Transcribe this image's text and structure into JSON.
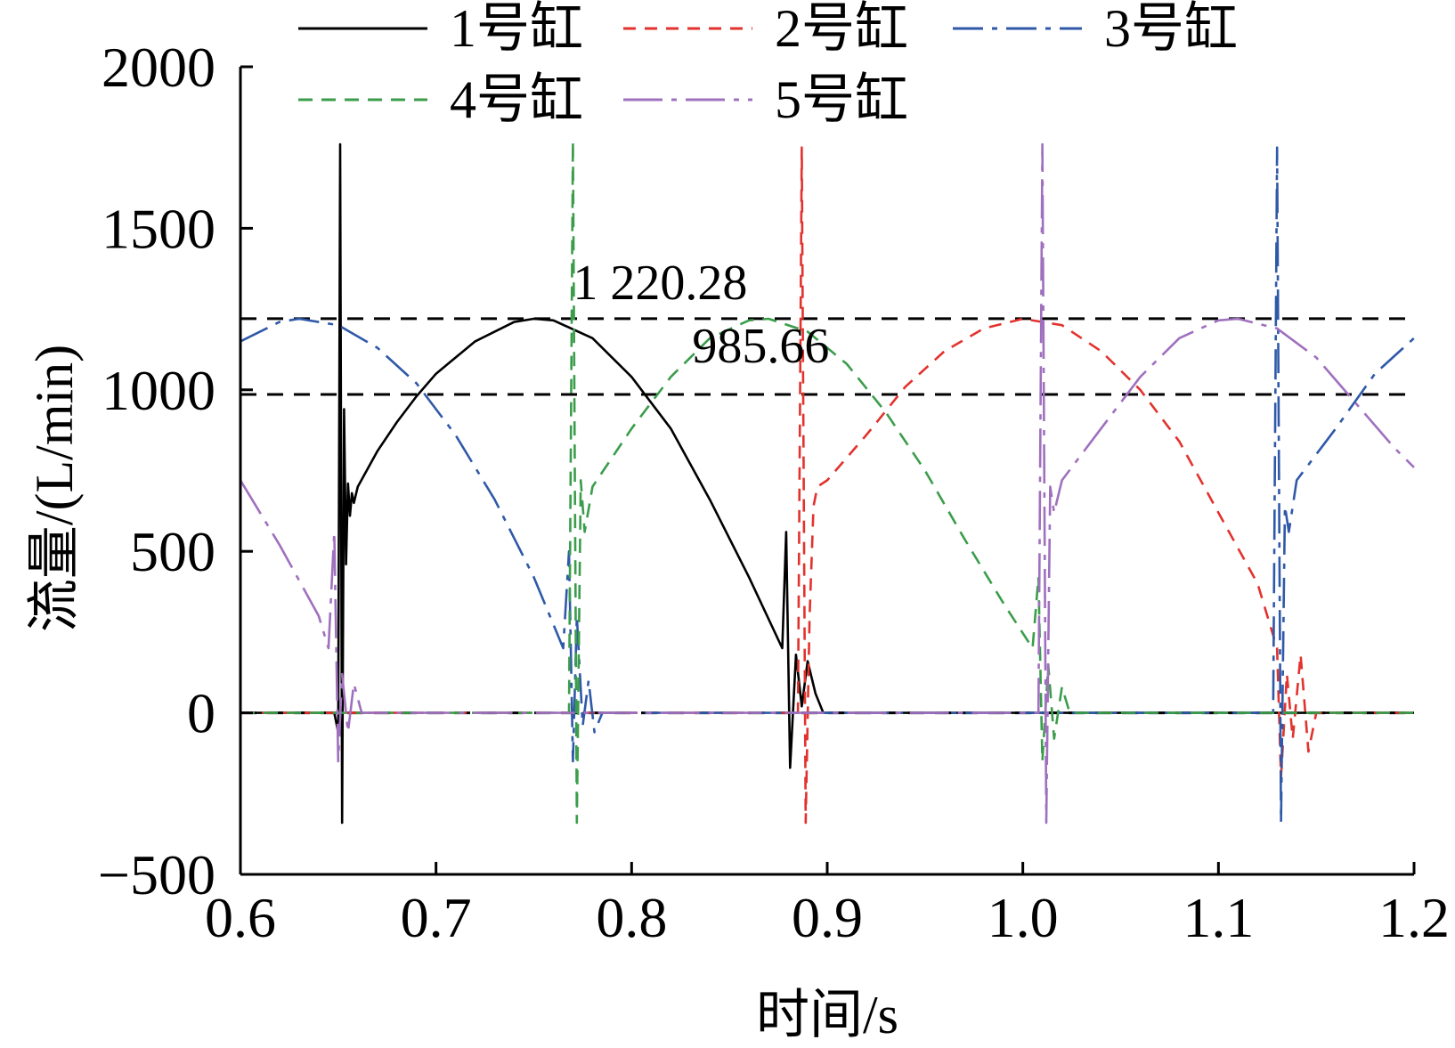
{
  "chart_data": {
    "type": "line",
    "title": "",
    "xlabel": "时间/s",
    "ylabel": "流量/(L/min)",
    "xlim": [
      0.6,
      1.2
    ],
    "ylim": [
      -500,
      2000
    ],
    "x_ticks": [
      "0.6",
      "0.7",
      "0.8",
      "0.9",
      "1.0",
      "1.1",
      "1.2"
    ],
    "y_ticks": [
      "−500",
      "0",
      "500",
      "1000",
      "1500",
      "2000"
    ],
    "grid": false,
    "legend": "top",
    "reference_lines": [
      {
        "y": 1220.28,
        "label": "1 220.28",
        "style": "dashed",
        "color": "#000000"
      },
      {
        "y": 985.66,
        "label": "985.66",
        "style": "dashed",
        "color": "#000000"
      }
    ],
    "series": [
      {
        "name": "1号缸",
        "color": "#000000",
        "dash": "solid",
        "points": [
          [
            0.6,
            0
          ],
          [
            0.648,
            0
          ],
          [
            0.65,
            -60
          ],
          [
            0.651,
            1760
          ],
          [
            0.652,
            -340
          ],
          [
            0.653,
            940
          ],
          [
            0.654,
            460
          ],
          [
            0.655,
            710
          ],
          [
            0.656,
            610
          ],
          [
            0.657,
            680
          ],
          [
            0.658,
            650
          ],
          [
            0.66,
            700
          ],
          [
            0.67,
            810
          ],
          [
            0.68,
            900
          ],
          [
            0.69,
            980
          ],
          [
            0.7,
            1050
          ],
          [
            0.72,
            1150
          ],
          [
            0.74,
            1210
          ],
          [
            0.75,
            1220
          ],
          [
            0.76,
            1215
          ],
          [
            0.78,
            1160
          ],
          [
            0.8,
            1040
          ],
          [
            0.82,
            880
          ],
          [
            0.84,
            660
          ],
          [
            0.86,
            420
          ],
          [
            0.877,
            200
          ],
          [
            0.879,
            560
          ],
          [
            0.881,
            -170
          ],
          [
            0.884,
            180
          ],
          [
            0.887,
            20
          ],
          [
            0.89,
            160
          ],
          [
            0.894,
            60
          ],
          [
            0.898,
            0
          ],
          [
            1.2,
            0
          ]
        ]
      },
      {
        "name": "2号缸",
        "color": "#e2322d",
        "dash": "14 10",
        "points": [
          [
            0.6,
            0
          ],
          [
            0.885,
            0
          ],
          [
            0.887,
            1750
          ],
          [
            0.889,
            -340
          ],
          [
            0.891,
            300
          ],
          [
            0.893,
            640
          ],
          [
            0.895,
            700
          ],
          [
            0.9,
            720
          ],
          [
            0.92,
            860
          ],
          [
            0.94,
            1010
          ],
          [
            0.96,
            1120
          ],
          [
            0.98,
            1190
          ],
          [
            1.0,
            1220
          ],
          [
            1.02,
            1200
          ],
          [
            1.04,
            1120
          ],
          [
            1.06,
            1000
          ],
          [
            1.08,
            840
          ],
          [
            1.1,
            620
          ],
          [
            1.12,
            400
          ],
          [
            1.13,
            200
          ],
          [
            1.132,
            -200
          ],
          [
            1.135,
            120
          ],
          [
            1.138,
            -80
          ],
          [
            1.142,
            180
          ],
          [
            1.146,
            -120
          ],
          [
            1.15,
            0
          ],
          [
            1.2,
            0
          ]
        ]
      },
      {
        "name": "3号缸",
        "color": "#2f59a8",
        "dash": "34 10 6 10",
        "points": [
          [
            0.6,
            1150
          ],
          [
            0.62,
            1210
          ],
          [
            0.63,
            1220
          ],
          [
            0.65,
            1200
          ],
          [
            0.67,
            1130
          ],
          [
            0.69,
            1020
          ],
          [
            0.71,
            860
          ],
          [
            0.73,
            660
          ],
          [
            0.75,
            420
          ],
          [
            0.765,
            200
          ],
          [
            0.768,
            500
          ],
          [
            0.77,
            -150
          ],
          [
            0.772,
            300
          ],
          [
            0.775,
            -40
          ],
          [
            0.778,
            100
          ],
          [
            0.781,
            -60
          ],
          [
            0.785,
            0
          ],
          [
            1.128,
            0
          ],
          [
            1.13,
            1750
          ],
          [
            1.132,
            -340
          ],
          [
            1.134,
            640
          ],
          [
            1.136,
            560
          ],
          [
            1.14,
            720
          ],
          [
            1.16,
            880
          ],
          [
            1.18,
            1050
          ],
          [
            1.2,
            1160
          ]
        ]
      },
      {
        "name": "4号缸",
        "color": "#3b9d4b",
        "dash": "16 10",
        "points": [
          [
            0.6,
            0
          ],
          [
            0.768,
            0
          ],
          [
            0.77,
            1770
          ],
          [
            0.772,
            -340
          ],
          [
            0.774,
            720
          ],
          [
            0.776,
            560
          ],
          [
            0.78,
            700
          ],
          [
            0.8,
            880
          ],
          [
            0.82,
            1040
          ],
          [
            0.84,
            1160
          ],
          [
            0.86,
            1215
          ],
          [
            0.87,
            1220
          ],
          [
            0.89,
            1180
          ],
          [
            0.91,
            1080
          ],
          [
            0.93,
            930
          ],
          [
            0.95,
            750
          ],
          [
            0.97,
            540
          ],
          [
            0.99,
            340
          ],
          [
            1.005,
            200
          ],
          [
            1.008,
            420
          ],
          [
            1.01,
            -150
          ],
          [
            1.013,
            150
          ],
          [
            1.016,
            -80
          ],
          [
            1.02,
            80
          ],
          [
            1.024,
            0
          ],
          [
            1.2,
            0
          ]
        ]
      },
      {
        "name": "5号缸",
        "color": "#9f70be",
        "dash": "44 10 6 10",
        "points": [
          [
            0.6,
            720
          ],
          [
            0.62,
            520
          ],
          [
            0.64,
            300
          ],
          [
            0.645,
            200
          ],
          [
            0.648,
            560
          ],
          [
            0.65,
            -150
          ],
          [
            0.652,
            120
          ],
          [
            0.655,
            -60
          ],
          [
            0.658,
            90
          ],
          [
            0.662,
            0
          ],
          [
            1.008,
            0
          ],
          [
            1.01,
            1760
          ],
          [
            1.012,
            -340
          ],
          [
            1.014,
            700
          ],
          [
            1.016,
            620
          ],
          [
            1.02,
            720
          ],
          [
            1.04,
            880
          ],
          [
            1.06,
            1040
          ],
          [
            1.08,
            1160
          ],
          [
            1.1,
            1215
          ],
          [
            1.11,
            1220
          ],
          [
            1.13,
            1190
          ],
          [
            1.15,
            1100
          ],
          [
            1.17,
            960
          ],
          [
            1.19,
            820
          ],
          [
            1.2,
            760
          ]
        ]
      }
    ]
  }
}
